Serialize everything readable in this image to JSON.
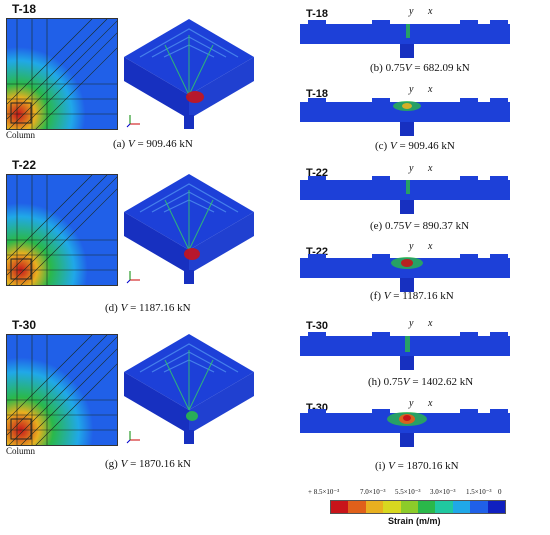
{
  "rows": [
    {
      "specimen": "T-18",
      "plan_column_label": "Column",
      "caption_prefix": "(a) ",
      "caption_var": "V",
      "caption_value": " = 909.46 kN"
    },
    {
      "specimen": "T-22",
      "plan_column_label": "",
      "caption_prefix": "(d) ",
      "caption_var": "V",
      "caption_value": " = 1187.16 kN"
    },
    {
      "specimen": "T-30",
      "plan_column_label": "Column",
      "caption_prefix": "(g) ",
      "caption_var": "V",
      "caption_value": " = 1870.16 kN"
    }
  ],
  "sections": [
    {
      "specimen": "T-18",
      "y": "y",
      "x": "x",
      "caption_prefix": "(b) 0.75",
      "caption_var": "V",
      "caption_value": " = 682.09 kN"
    },
    {
      "specimen": "T-18",
      "y": "y",
      "x": "x",
      "caption_prefix": "(c) ",
      "caption_var": "V",
      "caption_value": " = 909.46 kN"
    },
    {
      "specimen": "T-22",
      "y": "y",
      "x": "x",
      "caption_prefix": "(e) 0.75",
      "caption_var": "V",
      "caption_value": " = 890.37 kN"
    },
    {
      "specimen": "T-22",
      "y": "y",
      "x": "x",
      "caption_prefix": "(f) ",
      "caption_var": "V",
      "caption_value": " = 1187.16 kN"
    },
    {
      "specimen": "T-30",
      "y": "y",
      "x": "x",
      "caption_prefix": "(h) 0.75",
      "caption_var": "V",
      "caption_value": " = 1402.62 kN"
    },
    {
      "specimen": "T-30",
      "y": "y",
      "x": "x",
      "caption_prefix": "(i) ",
      "caption_var": "V",
      "caption_value": " = 1870.16 kN"
    }
  ],
  "legend": {
    "ticks": [
      "+ 8.5×10⁻³",
      "7.0×10⁻³",
      "5.5×10⁻³",
      "3.0×10⁻³",
      "1.5×10⁻³",
      "0"
    ],
    "title": "Strain (m/m)",
    "colors": [
      "#c8141a",
      "#e0601a",
      "#e8b020",
      "#d8d820",
      "#8ccc2a",
      "#2ab84a",
      "#20c8a0",
      "#20a8e8",
      "#2060e8",
      "#1020c0"
    ]
  }
}
